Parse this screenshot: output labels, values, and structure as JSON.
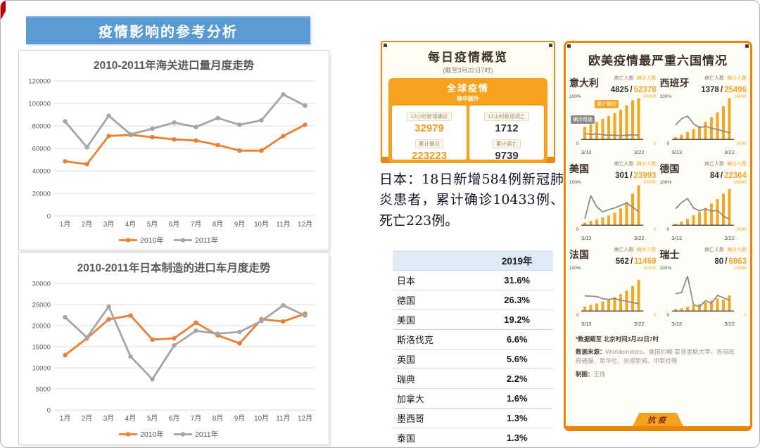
{
  "banner": {
    "title": "疫情影响的参考分析",
    "bg_color": "#5B9BD5"
  },
  "corner_mark_color": "#C00000",
  "chart_data": [
    {
      "id": "customs_imports",
      "type": "line",
      "title": "2010-2011年海关进口量月度走势",
      "categories": [
        "1月",
        "2月",
        "3月",
        "4月",
        "5月",
        "6月",
        "7月",
        "8月",
        "9月",
        "10月",
        "11月",
        "12月"
      ],
      "series": [
        {
          "name": "2010年",
          "color": "#ED7D31",
          "values": [
            48500,
            46000,
            71000,
            72000,
            70000,
            68000,
            67000,
            63000,
            58000,
            58000,
            71000,
            81000
          ]
        },
        {
          "name": "2011年",
          "color": "#A5A5A5",
          "values": [
            84000,
            61000,
            89000,
            72500,
            77500,
            83000,
            79000,
            87000,
            81000,
            85000,
            108000,
            98000
          ]
        }
      ],
      "ylim": [
        0,
        120000
      ],
      "ytick_step": 20000,
      "grid": true,
      "legend_position": "bottom"
    },
    {
      "id": "japan_cars",
      "type": "line",
      "title": "2010-2011年日本制造的进口车月度走势",
      "categories": [
        "1月",
        "2月",
        "3月",
        "4月",
        "5月",
        "6月",
        "7月",
        "8月",
        "9月",
        "10月",
        "11月",
        "12月"
      ],
      "series": [
        {
          "name": "2010年",
          "color": "#ED7D31",
          "values": [
            13000,
            17000,
            21500,
            22400,
            16700,
            17000,
            20700,
            17700,
            15800,
            21500,
            21000,
            22800
          ]
        },
        {
          "name": "2011年",
          "color": "#A5A5A5",
          "values": [
            22000,
            17200,
            24500,
            12700,
            7300,
            15300,
            18800,
            18100,
            18500,
            21100,
            24800,
            22400
          ]
        }
      ],
      "ylim": [
        0,
        30000
      ],
      "ytick_step": 5000,
      "grid": true,
      "legend_position": "bottom"
    },
    {
      "id": "italy",
      "type": "combo",
      "country": "意大利",
      "deaths": "4825",
      "confirmed": "52378",
      "left_axis_top": "100%",
      "left_axis_bottom": "0",
      "right_axis_top": "50000",
      "right_axis_bottom": "0",
      "right_range": [
        0,
        50000
      ],
      "x_labels": [
        "3/13",
        "3/22"
      ],
      "bars": [
        15000,
        18000,
        21000,
        24500,
        28000,
        31500,
        35500,
        41000,
        47000,
        49500
      ],
      "line_pct": [
        14,
        12,
        13,
        11,
        10,
        10,
        9,
        10,
        11,
        10
      ],
      "tags": [
        "累计确诊",
        "确诊增速"
      ]
    },
    {
      "id": "spain",
      "type": "combo",
      "country": "西班牙",
      "deaths": "1378",
      "confirmed": "25496",
      "left_axis_top": "100%",
      "left_axis_bottom": "0",
      "right_axis_top": "25000",
      "right_axis_bottom": "5000",
      "right_range": [
        5000,
        25000
      ],
      "x_labels": [
        "3/13",
        "3/22"
      ],
      "bars": [
        6000,
        7200,
        8600,
        10000,
        11500,
        13400,
        15500,
        18000,
        21000,
        24800
      ],
      "line_pct": [
        35,
        50,
        57,
        38,
        28,
        32,
        27,
        24,
        20,
        16
      ]
    },
    {
      "id": "usa",
      "type": "combo",
      "country": "美国",
      "deaths": "301",
      "confirmed": "23993",
      "left_axis_top": "100%",
      "left_axis_bottom": "0",
      "right_axis_top": "25000",
      "right_axis_bottom": "0",
      "right_range": [
        0,
        25000
      ],
      "x_labels": [
        "3/13",
        "3/22"
      ],
      "bars": [
        1500,
        2500,
        3500,
        4600,
        5800,
        7500,
        10000,
        14000,
        19000,
        24000
      ],
      "line_pct": [
        15,
        72,
        45,
        32,
        38,
        42,
        48,
        54,
        44,
        33
      ]
    },
    {
      "id": "germany",
      "type": "combo",
      "country": "德国",
      "deaths": "84",
      "confirmed": "22364",
      "left_axis_top": "100%",
      "left_axis_bottom": "0",
      "right_axis_top": "25000",
      "right_axis_bottom": "5000",
      "right_range": [
        5000,
        25000
      ],
      "x_labels": [
        "3/13",
        "3/22"
      ],
      "bars": [
        5600,
        6600,
        8000,
        9700,
        11300,
        13200,
        15300,
        17600,
        20100,
        22400
      ],
      "line_pct": [
        40,
        55,
        65,
        42,
        35,
        40,
        34,
        36,
        22,
        14
      ]
    },
    {
      "id": "france",
      "type": "combo",
      "country": "法国",
      "deaths": "562",
      "confirmed": "11459",
      "left_axis_top": "100%",
      "left_axis_bottom": "0",
      "right_axis_top": "20000",
      "right_axis_bottom": "0",
      "right_range": [
        0,
        20000
      ],
      "x_labels": [
        "3/13",
        "3/22"
      ],
      "bars": [
        2000,
        2800,
        3600,
        4500,
        5500,
        6700,
        8000,
        9800,
        12000,
        15000
      ],
      "line_pct": [
        37,
        36,
        35,
        30,
        28,
        30,
        26,
        24,
        20,
        18
      ]
    },
    {
      "id": "switzerland",
      "type": "combo",
      "country": "瑞士",
      "deaths": "80",
      "confirmed": "6863",
      "left_axis_top": "100%",
      "left_axis_bottom": "0",
      "right_axis_top": "20000",
      "right_axis_bottom": "0",
      "right_range": [
        0,
        20000
      ],
      "x_labels": [
        "3/13",
        "3/22"
      ],
      "bars": [
        900,
        1300,
        1900,
        2600,
        3300,
        4100,
        5000,
        6000,
        5400,
        7500
      ],
      "line_pct": [
        42,
        45,
        85,
        15,
        10,
        25,
        18,
        38,
        32,
        26
      ]
    }
  ],
  "daily_card": {
    "title": "每日疫情概览",
    "subtitle": "(截至3月22日7时)",
    "global_title": "全球疫情",
    "global_subtitle": "除中国外",
    "stats": [
      {
        "label": "12小时新增确诊",
        "value": "32979"
      },
      {
        "label": "12小时新增病亡",
        "value": "1712"
      },
      {
        "label": "累计确诊",
        "value": "223223"
      },
      {
        "label": "累计病亡",
        "value": "9739"
      }
    ]
  },
  "japan_note": "日本：18日新增584例新冠肺炎患者，累计确诊10433例、死亡223例。",
  "share_table": {
    "header": [
      "",
      "2019年"
    ],
    "rows": [
      [
        "日本",
        "31.6%"
      ],
      [
        "德国",
        "26.3%"
      ],
      [
        "美国",
        "19.2%"
      ],
      [
        "斯洛伐克",
        "6.6%"
      ],
      [
        "英国",
        "5.6%"
      ],
      [
        "瑞典",
        "2.2%"
      ],
      [
        "加拿大",
        "1.6%"
      ],
      [
        "墨西哥",
        "1.3%"
      ],
      [
        "泰国",
        "1.3%"
      ]
    ]
  },
  "six_card": {
    "title": "欧美疫情最严重六国情况",
    "label_deaths": "病亡人数",
    "label_confirmed": "确诊人数",
    "footnote": "*数据截至 北京时间3月22日7时",
    "source_label": "数据来源：",
    "source_text": "Worldometers、美国约翰·霍普金斯大学、各国政府通报、新华社、央视新闻、中新社等",
    "credit_label": "制图：",
    "credit_name": "王烁",
    "ribbon": "抗疫"
  }
}
